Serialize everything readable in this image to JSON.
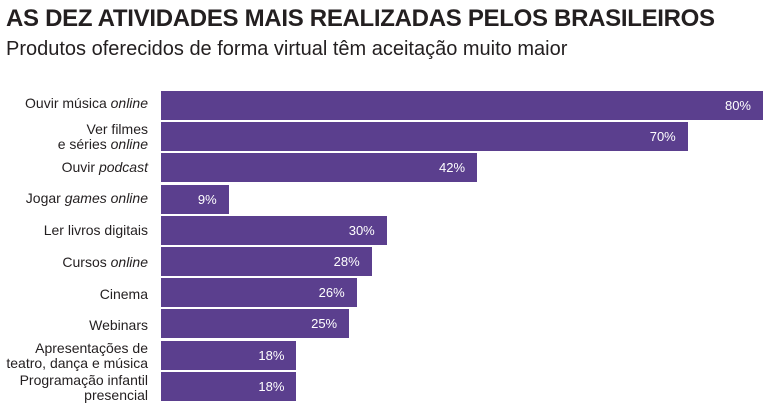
{
  "header": {
    "title": "AS DEZ ATIVIDADES MAIS REALIZADAS PELOS BRASILEIROS",
    "subtitle": "Produtos oferecidos de forma virtual têm aceitação muito maior"
  },
  "chart_data": {
    "type": "bar",
    "orientation": "horizontal",
    "title": "AS DEZ ATIVIDADES MAIS REALIZADAS PELOS BRASILEIROS",
    "subtitle": "Produtos oferecidos de forma virtual têm aceitação muito maior",
    "categories": [
      "Ouvir música online",
      "Ver filmes e séries online",
      "Ouvir podcast",
      "Jogar games online",
      "Ler livros digitais",
      "Cursos online",
      "Cinema",
      "Webinars",
      "Apresentações de teatro, dança e música",
      "Programação infantil presencial"
    ],
    "values": [
      80,
      70,
      42,
      9,
      30,
      28,
      26,
      25,
      18,
      18
    ],
    "value_labels": [
      "80%",
      "70%",
      "42%",
      "9%",
      "30%",
      "28%",
      "26%",
      "25%",
      "18%",
      "18%"
    ],
    "xlim": [
      0,
      80
    ],
    "bar_color": "#5b3f8e",
    "grid": false
  }
}
